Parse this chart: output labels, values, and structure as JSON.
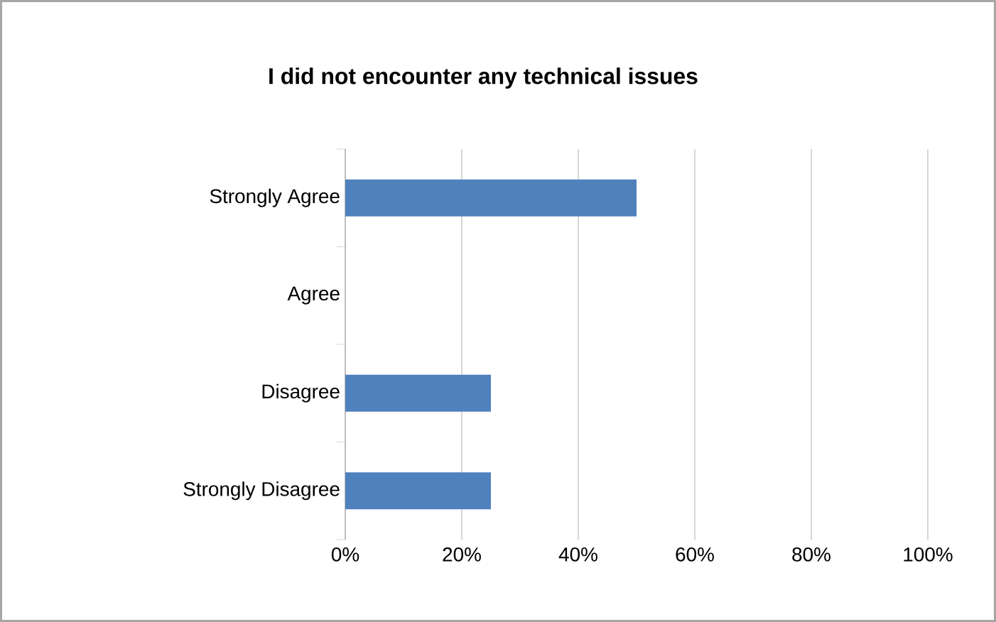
{
  "chart_data": {
    "type": "bar",
    "orientation": "horizontal",
    "title": "I did not encounter any technical issues",
    "categories": [
      "Strongly Agree",
      "Agree",
      "Disagree",
      "Strongly Disagree"
    ],
    "values": [
      50,
      0,
      25,
      25
    ],
    "color": "#4f81bd",
    "xlim": [
      0,
      100
    ],
    "xticks": [
      {
        "value": 0,
        "label": "0%"
      },
      {
        "value": 20,
        "label": "20%"
      },
      {
        "value": 40,
        "label": "40%"
      },
      {
        "value": 60,
        "label": "60%"
      },
      {
        "value": 80,
        "label": "80%"
      },
      {
        "value": 100,
        "label": "100%"
      }
    ],
    "grid": "x"
  }
}
